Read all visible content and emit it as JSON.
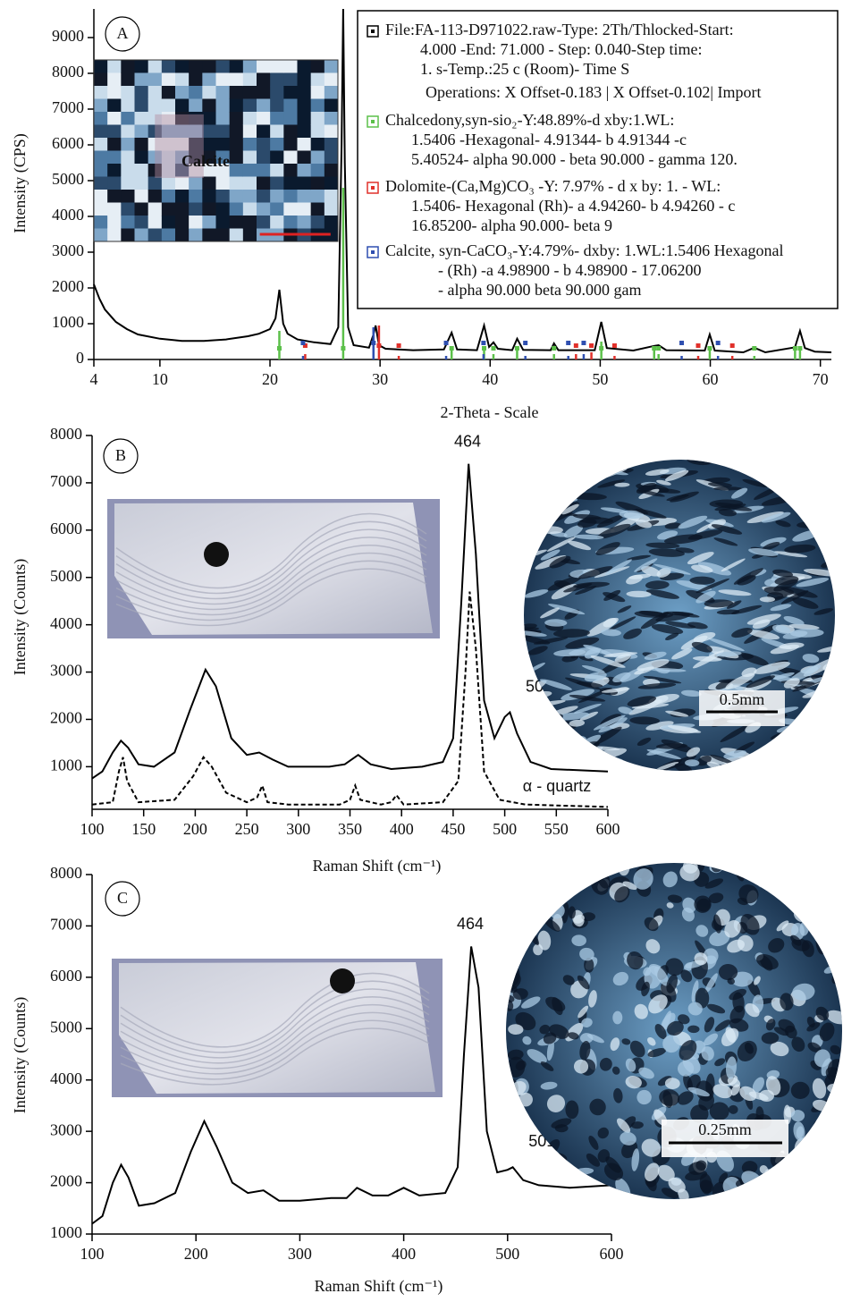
{
  "chart_data": [
    {
      "type": "line",
      "panel_label": "A",
      "x_label": "2-Theta - Scale",
      "y_label": "Intensity (CPS)",
      "xlim": [
        4,
        71
      ],
      "ylim": [
        0,
        9800
      ],
      "xticks": [
        4,
        10,
        20,
        30,
        40,
        50,
        60,
        70
      ],
      "yticks": [
        0,
        1000,
        2000,
        3000,
        4000,
        5000,
        6000,
        7000,
        8000,
        9000
      ],
      "inset_label": "Calcite",
      "operations": "Operations: X Offset-0.183 | X Offset-0.102| Import",
      "series": [
        {
          "name": "File:FA-113-D971022.raw-Type: 2Th/Thlocked-Start:",
          "details": [
            "4.000 -End: 71.000 - Step: 0.040-Step time:",
            "1. s-Temp.:25 c (Room)- Time S"
          ],
          "color": "#000000",
          "style": "line",
          "x": [
            4,
            4.5,
            5,
            6,
            7,
            8,
            10,
            12,
            14,
            16,
            18,
            19,
            20,
            20.5,
            20.85,
            21.2,
            21.6,
            22.5,
            24,
            25.5,
            26.2,
            26.5,
            26.65,
            26.8,
            27.1,
            27.6,
            29,
            29.4,
            29.6,
            29.9,
            30.5,
            33,
            35.8,
            36.5,
            37,
            38.8,
            39.45,
            39.9,
            40.3,
            40.7,
            42,
            42.45,
            43,
            45.5,
            45.8,
            46.2,
            49.5,
            50.1,
            50.6,
            53,
            54.9,
            55.3,
            56,
            59.5,
            59.95,
            60.4,
            63,
            64,
            65,
            67.5,
            67.7,
            68.15,
            68.6,
            69.5,
            71
          ],
          "values": [
            2100,
            1700,
            1400,
            1050,
            850,
            700,
            580,
            520,
            520,
            560,
            650,
            720,
            850,
            1150,
            1950,
            1000,
            720,
            560,
            480,
            430,
            900,
            6000,
            9800,
            5500,
            900,
            400,
            330,
            700,
            950,
            400,
            300,
            260,
            280,
            750,
            280,
            260,
            950,
            350,
            480,
            300,
            260,
            580,
            270,
            260,
            450,
            260,
            260,
            1050,
            320,
            250,
            380,
            400,
            260,
            250,
            700,
            250,
            200,
            330,
            200,
            330,
            350,
            800,
            320,
            220,
            200
          ]
        },
        {
          "name": "Chalcedony,syn-sio₂-Y:48.89%-d xby:1.WL:",
          "details": [
            "1.5406 -Hexagonal- 4.91344- b 4.91344 -c",
            "5.40524- alpha 90.000 - beta 90.000 - gamma 120."
          ],
          "color": "#5cc04a",
          "style": "stick",
          "x": [
            20.85,
            26.65,
            36.5,
            39.45,
            40.3,
            42.45,
            45.8,
            50.1,
            54.9,
            55.3,
            59.95,
            64.0,
            67.7,
            68.15
          ],
          "values": [
            800,
            4800,
            250,
            300,
            150,
            250,
            150,
            500,
            250,
            150,
            300,
            100,
            250,
            300
          ]
        },
        {
          "name": "Dolomite-(Ca,Mg)CO₃ -Y: 7.97% - d x by: 1. - WL:",
          "details": [
            "1.5406- Hexagonal (Rh)- a 4.94260- b 4.94260 - c",
            "16.85200- alpha 90.000- beta 9"
          ],
          "color": "#e0302a",
          "style": "stick",
          "x": [
            23.2,
            29.9,
            31.7,
            47.8,
            49.2,
            51.3,
            58.9,
            62.0
          ],
          "values": [
            150,
            950,
            100,
            150,
            200,
            100,
            100,
            100
          ]
        },
        {
          "name": "Calcite, syn-CaCO₃-Y:4.79%- dxby: 1.WL:1.5406 Hexagonal",
          "details": [
            "- (Rh) -a 4.98900 - b 4.98900 - 17.06200",
            "- alpha 90.000 beta 90.000 gam"
          ],
          "color": "#2f4fb0",
          "style": "stick",
          "x": [
            23.0,
            29.4,
            36.0,
            39.4,
            43.2,
            47.1,
            48.5,
            57.4,
            60.7
          ],
          "values": [
            100,
            900,
            100,
            150,
            100,
            100,
            150,
            100,
            100
          ]
        }
      ]
    },
    {
      "type": "line",
      "panel_label": "B",
      "x_label": "Raman Shift (cm⁻¹)",
      "y_label": "Intensity (Counts)",
      "xlim": [
        100,
        600
      ],
      "ylim": [
        100,
        8000
      ],
      "xticks": [
        100,
        150,
        200,
        250,
        300,
        350,
        400,
        450,
        500,
        550,
        600
      ],
      "yticks": [
        1000,
        2000,
        3000,
        4000,
        5000,
        6000,
        7000,
        8000
      ],
      "scale_label": "0.5mm",
      "annotations": [
        {
          "text": "464",
          "x": 464,
          "y": 7400
        },
        {
          "text": "501",
          "x": 503,
          "y": 2150
        }
      ],
      "series": [
        {
          "color": "#000000",
          "style": "line",
          "x": [
            100,
            110,
            120,
            128,
            135,
            145,
            160,
            180,
            195,
            210,
            220,
            235,
            250,
            262,
            275,
            290,
            330,
            345,
            358,
            370,
            390,
            420,
            440,
            450,
            458,
            465,
            472,
            480,
            490,
            500,
            505,
            512,
            525,
            545,
            600
          ],
          "values": [
            750,
            900,
            1300,
            1550,
            1400,
            1050,
            1000,
            1300,
            2200,
            3050,
            2700,
            1600,
            1250,
            1300,
            1150,
            1000,
            1000,
            1050,
            1250,
            1050,
            950,
            1000,
            1100,
            1600,
            4500,
            7400,
            5500,
            2400,
            1600,
            2050,
            2150,
            1700,
            1100,
            950,
            900
          ]
        },
        {
          "name": "α - quartz",
          "color": "#000000",
          "style": "dashed",
          "x": [
            100,
            120,
            126,
            130,
            134,
            145,
            180,
            198,
            208,
            216,
            230,
            250,
            260,
            265,
            270,
            290,
            340,
            350,
            355,
            360,
            380,
            390,
            395,
            402,
            440,
            455,
            462,
            466,
            472,
            480,
            495,
            520,
            600
          ],
          "values": [
            200,
            250,
            900,
            1200,
            700,
            250,
            300,
            800,
            1200,
            1000,
            450,
            250,
            350,
            600,
            250,
            200,
            200,
            300,
            600,
            300,
            200,
            250,
            400,
            200,
            250,
            700,
            3000,
            4700,
            3500,
            900,
            300,
            200,
            150
          ]
        }
      ]
    },
    {
      "type": "line",
      "panel_label": "C",
      "x_label": "Raman Shift (cm⁻¹)",
      "y_label": "Intensity (Counts)",
      "xlim": [
        100,
        600
      ],
      "ylim": [
        1000,
        8000
      ],
      "xticks": [
        100,
        200,
        300,
        400,
        500,
        600
      ],
      "yticks": [
        1000,
        2000,
        3000,
        4000,
        5000,
        6000,
        7000,
        8000
      ],
      "scale_label": "0.25mm",
      "annotations": [
        {
          "text": "464",
          "x": 464,
          "y": 6600
        },
        {
          "text": "501",
          "x": 503,
          "y": 2300
        }
      ],
      "series": [
        {
          "color": "#000000",
          "style": "line",
          "x": [
            100,
            110,
            120,
            128,
            135,
            145,
            160,
            180,
            195,
            208,
            220,
            235,
            250,
            265,
            280,
            300,
            330,
            345,
            355,
            370,
            385,
            400,
            415,
            440,
            452,
            458,
            465,
            472,
            480,
            490,
            500,
            505,
            515,
            530,
            560,
            600
          ],
          "values": [
            1200,
            1350,
            2000,
            2350,
            2100,
            1550,
            1600,
            1800,
            2600,
            3200,
            2700,
            2000,
            1800,
            1850,
            1650,
            1650,
            1700,
            1700,
            1900,
            1750,
            1750,
            1900,
            1750,
            1800,
            2300,
            4500,
            6600,
            5800,
            3000,
            2200,
            2250,
            2300,
            2050,
            1950,
            1900,
            1950
          ]
        }
      ]
    }
  ]
}
